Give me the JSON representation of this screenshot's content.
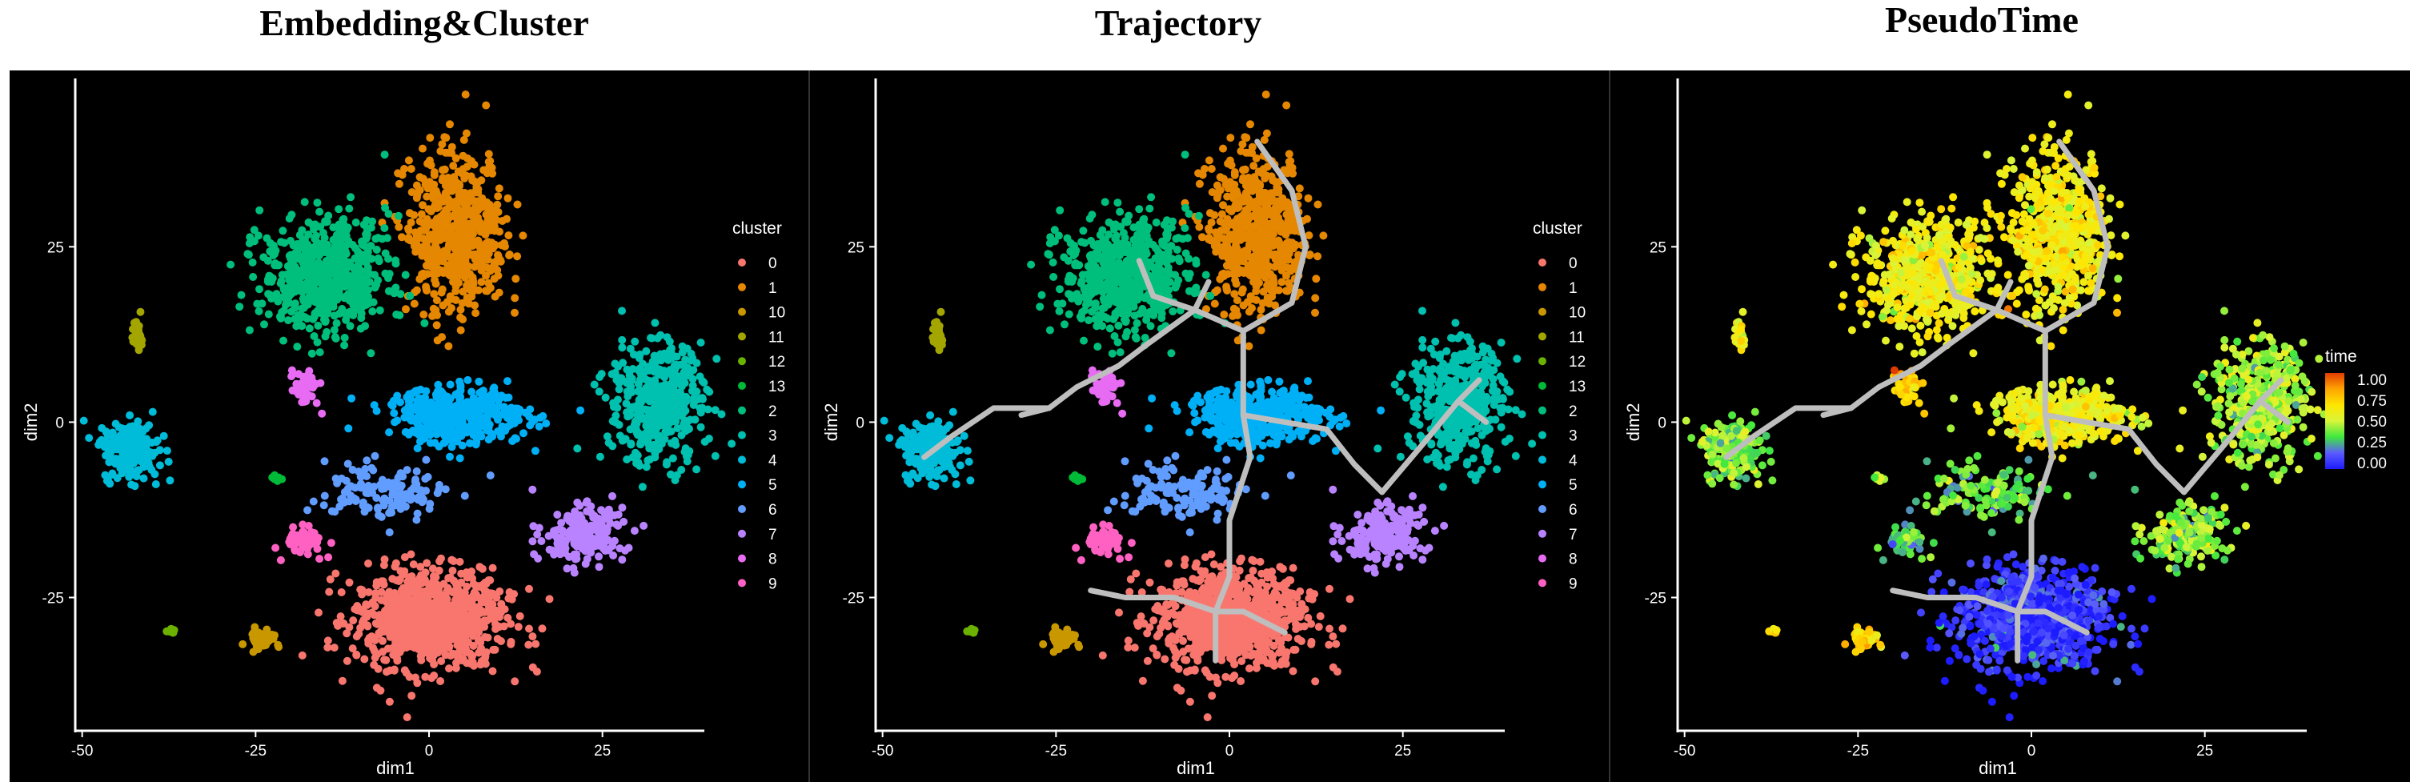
{
  "titles": [
    "Embedding&Cluster",
    "Trajectory",
    "PseudoTime"
  ],
  "chart_data": [
    {
      "type": "scatter",
      "title": "Embedding&Cluster",
      "xlabel": "dim1",
      "ylabel": "dim2",
      "xlim": [
        -51,
        39
      ],
      "ylim": [
        -44,
        49
      ],
      "xticks": [
        -50,
        -25,
        0,
        25
      ],
      "yticks": [
        -25,
        0,
        25
      ],
      "background": "#000000",
      "legend": {
        "title": "cluster",
        "placement": "right"
      },
      "clusters": [
        {
          "name": "0",
          "color": "#F8766D",
          "center": [
            0,
            -28
          ],
          "spread": [
            11,
            7
          ]
        },
        {
          "name": "1",
          "color": "#E58700",
          "center": [
            4,
            27
          ],
          "spread": [
            7,
            11
          ]
        },
        {
          "name": "10",
          "color": "#C99800",
          "center": [
            -24,
            -31
          ],
          "spread": [
            2,
            1.5
          ]
        },
        {
          "name": "11",
          "color": "#A3A500",
          "center": [
            -42,
            13
          ],
          "spread": [
            1,
            2
          ]
        },
        {
          "name": "12",
          "color": "#6BB100",
          "center": [
            -37,
            -30
          ],
          "spread": [
            1,
            0.4
          ]
        },
        {
          "name": "13",
          "color": "#00BA38",
          "center": [
            -22,
            -8
          ],
          "spread": [
            1,
            0.5
          ]
        },
        {
          "name": "2",
          "color": "#00BF7D",
          "center": [
            -15,
            21
          ],
          "spread": [
            9,
            8
          ]
        },
        {
          "name": "3",
          "color": "#00C0AF",
          "center": [
            33,
            3
          ],
          "spread": [
            7,
            9
          ]
        },
        {
          "name": "4",
          "color": "#00BCD8",
          "center": [
            -43,
            -4
          ],
          "spread": [
            4,
            4
          ]
        },
        {
          "name": "5",
          "color": "#00B0F6",
          "center": [
            4,
            1
          ],
          "spread": [
            10,
            4
          ]
        },
        {
          "name": "6",
          "color": "#619CFF",
          "center": [
            -6,
            -10
          ],
          "spread": [
            9,
            4
          ]
        },
        {
          "name": "7",
          "color": "#B983FF",
          "center": [
            22,
            -16
          ],
          "spread": [
            6,
            4
          ]
        },
        {
          "name": "8",
          "color": "#E76BF3",
          "center": [
            -18,
            5
          ],
          "spread": [
            2,
            2.5
          ]
        },
        {
          "name": "9",
          "color": "#FF61C3",
          "center": [
            -18,
            -17
          ],
          "spread": [
            3,
            2
          ]
        }
      ]
    },
    {
      "type": "scatter",
      "title": "Trajectory",
      "xlabel": "dim1",
      "ylabel": "dim2",
      "xlim": [
        -51,
        39
      ],
      "ylim": [
        -44,
        49
      ],
      "xticks": [
        -50,
        -25,
        0,
        25
      ],
      "yticks": [
        -25,
        0,
        25
      ],
      "background": "#000000",
      "legend": {
        "title": "cluster",
        "placement": "right"
      },
      "clusters_same_as_panel": 1,
      "trajectory_color": "#BEBEBE",
      "trajectory": [
        [
          [
            4,
            40
          ],
          [
            9,
            33
          ],
          [
            11,
            25
          ],
          [
            9,
            17
          ],
          [
            2,
            13
          ]
        ],
        [
          [
            -13,
            23
          ],
          [
            -11,
            18
          ],
          [
            -5,
            16
          ],
          [
            -3,
            20
          ]
        ],
        [
          [
            -5,
            16
          ],
          [
            2,
            13
          ]
        ],
        [
          [
            -5,
            16
          ],
          [
            -12,
            11
          ],
          [
            -16,
            8
          ],
          [
            -22,
            5
          ],
          [
            -26,
            2
          ],
          [
            -30,
            1
          ]
        ],
        [
          [
            -26,
            2
          ],
          [
            -34,
            2
          ],
          [
            -40,
            -2
          ],
          [
            -44,
            -5
          ]
        ],
        [
          [
            2,
            13
          ],
          [
            2,
            1
          ],
          [
            3,
            -5
          ],
          [
            0,
            -14
          ],
          [
            0,
            -22
          ],
          [
            -2,
            -27
          ]
        ],
        [
          [
            -2,
            -27
          ],
          [
            -8,
            -25
          ],
          [
            -15,
            -25
          ],
          [
            -20,
            -24
          ]
        ],
        [
          [
            -2,
            -27
          ],
          [
            -2,
            -34
          ]
        ],
        [
          [
            -2,
            -27
          ],
          [
            2,
            -27
          ],
          [
            8,
            -30
          ]
        ],
        [
          [
            2,
            1
          ],
          [
            8,
            0
          ],
          [
            14,
            -1
          ],
          [
            18,
            -6
          ],
          [
            22,
            -10
          ],
          [
            28,
            -3
          ],
          [
            33,
            3
          ],
          [
            36,
            6
          ]
        ],
        [
          [
            33,
            3
          ],
          [
            37,
            0
          ]
        ]
      ]
    },
    {
      "type": "scatter",
      "title": "PseudoTime",
      "xlabel": "dim1",
      "ylabel": "dim2",
      "xlim": [
        -51,
        39
      ],
      "ylim": [
        -44,
        49
      ],
      "xticks": [
        -50,
        -25,
        0,
        25
      ],
      "yticks": [
        -25,
        0,
        25
      ],
      "background": "#000000",
      "legend": {
        "title": "time",
        "placement": "right",
        "ticks": [
          "1.00",
          "0.75",
          "0.50",
          "0.25",
          "0.00"
        ]
      },
      "colorscale": [
        "#1D1BFF",
        "#5B5BFF",
        "#3EE83E",
        "#D8F53A",
        "#FFE600",
        "#FFA500",
        "#E23B00"
      ],
      "trajectory_same_as_panel": 2,
      "cluster_time": {
        "0": 0.05,
        "1": 0.62,
        "10": 0.7,
        "11": 0.65,
        "12": 0.62,
        "13": 0.45,
        "2": 0.6,
        "3": 0.45,
        "4": 0.4,
        "5": 0.6,
        "6": 0.35,
        "7": 0.42,
        "8": 0.72,
        "9": 0.33
      }
    }
  ]
}
